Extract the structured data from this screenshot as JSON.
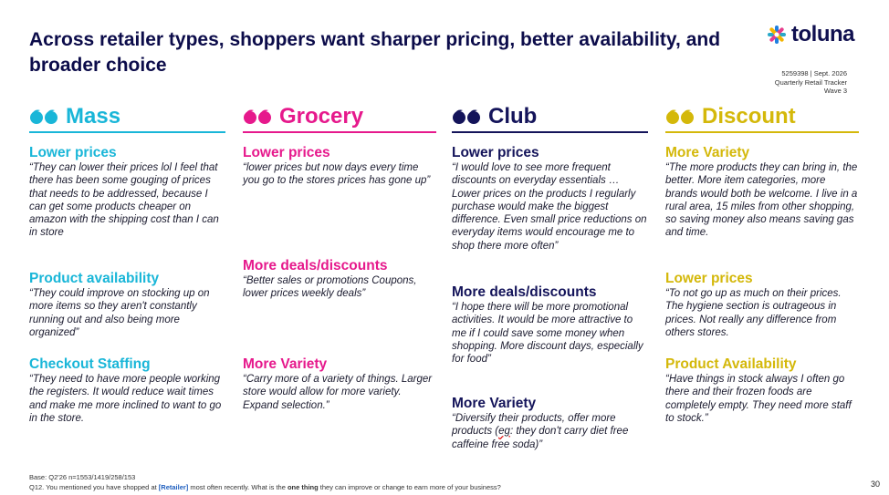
{
  "title": "Across retailer types, shoppers want sharper pricing, better availability, and broader choice",
  "logo": {
    "text": "toluna",
    "mark_colors": [
      "#1f7fe0",
      "#e63c8c",
      "#2aa8c8",
      "#f4b400"
    ]
  },
  "meta": {
    "line1": "5259398 | Sept. 2026",
    "line2": "Quarterly Retail Tracker",
    "line3": "Wave 3"
  },
  "columns": [
    {
      "title": "Mass",
      "color": "#19b6d8",
      "sections": [
        {
          "heading": "Lower prices",
          "quote": "“They can lower their prices lol I feel that there has been some gouging of prices that needs to be addressed, because I can get some products cheaper on amazon with the shipping cost than I can in store"
        },
        {
          "heading": "Product availability",
          "quote": "“They could improve on stocking up on more items so they aren't constantly running out and also being more organized”"
        },
        {
          "heading": "Checkout Staffing",
          "quote": "“They need to have more people working the registers. It would reduce wait times and make me more inclined to want to go in the store."
        }
      ]
    },
    {
      "title": "Grocery",
      "color": "#e6198c",
      "sections": [
        {
          "heading": "Lower prices",
          "quote": "“lower prices but now days every time you go to the stores prices has gone up”"
        },
        {
          "heading": "More deals/discounts",
          "quote": "“Better sales or promotions Coupons, lower prices weekly deals”"
        },
        {
          "heading": "More Variety",
          "quote": "“Carry more of a variety of things. Larger store would allow for more variety. Expand selection.”"
        }
      ]
    },
    {
      "title": "Club",
      "color": "#14145a",
      "sections": [
        {
          "heading": "Lower prices",
          "quote": "“I would love to see more frequent discounts on everyday essentials … Lower prices on the products I regularly purchase would make the biggest difference. Even small price reductions on everyday items would encourage me to shop there more often”"
        },
        {
          "heading": "More deals/discounts",
          "quote": "“I hope there will be more promotional activities. It would be more attractive to me if I could save some money when shopping. More discount days, especially for food”"
        },
        {
          "heading": "More Variety",
          "quote_pre": "“Diversify their products, offer more products (",
          "quote_mark": "eg",
          "quote_post": ": they don't carry diet free caffeine free soda)”"
        }
      ]
    },
    {
      "title": "Discount",
      "color": "#d4b80a",
      "sections": [
        {
          "heading": "More Variety",
          "quote": "“The more products they can bring in, the better. More item categories, more brands would both be welcome. I live in a rural area, 15 miles from other shopping, so saving money also means saving gas and time."
        },
        {
          "heading": "Lower prices",
          "quote": "“To not go up as much on their prices. The hygiene section is outrageous in prices. Not really any difference from others stores."
        },
        {
          "heading": "Product Availability",
          "quote": "“Have things in stock always I often go there and their frozen foods are completely empty. They need more staff to stock.”"
        }
      ]
    }
  ],
  "footer": {
    "base": "Base: Q2'26 n=1553/1419/258/153",
    "q_pre": "Q12. You mentioned you have shopped at ",
    "q_retailer": "[Retailer]",
    "q_mid": " most often recently. What is the ",
    "q_bold": "one thing",
    "q_post": " they can improve or change to earn more of your business?"
  },
  "page_number": "30"
}
